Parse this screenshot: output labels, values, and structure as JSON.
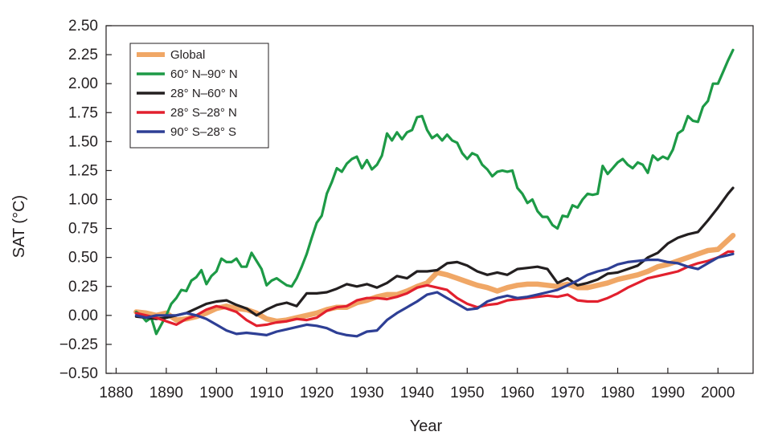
{
  "chart_data": {
    "type": "line",
    "title": "",
    "xlabel": "Year",
    "ylabel": "SAT (°C)",
    "xlim": [
      1878,
      2007
    ],
    "ylim": [
      -0.5,
      2.5
    ],
    "x_ticks": [
      1880,
      1890,
      1900,
      1910,
      1920,
      1930,
      1940,
      1950,
      1960,
      1970,
      1980,
      1990,
      2000
    ],
    "y_ticks": [
      -0.5,
      -0.25,
      0.0,
      0.25,
      0.5,
      0.75,
      1.0,
      1.25,
      1.5,
      1.75,
      2.0,
      2.25,
      2.5
    ],
    "y_tick_labels": [
      "−0.50",
      "−0.25",
      "0.00",
      "0.25",
      "0.50",
      "0.75",
      "1.00",
      "1.25",
      "1.50",
      "1.75",
      "2.00",
      "2.25",
      "2.50"
    ],
    "grid": false,
    "legend_position": "top-left",
    "series": [
      {
        "name": "Global",
        "color": "#f0a766",
        "x": [
          1884,
          1886,
          1888,
          1890,
          1892,
          1894,
          1896,
          1898,
          1900,
          1902,
          1904,
          1906,
          1908,
          1910,
          1912,
          1914,
          1916,
          1918,
          1920,
          1922,
          1924,
          1926,
          1928,
          1930,
          1932,
          1934,
          1936,
          1938,
          1940,
          1942,
          1944,
          1946,
          1948,
          1950,
          1952,
          1954,
          1956,
          1958,
          1960,
          1962,
          1964,
          1966,
          1968,
          1970,
          1972,
          1974,
          1976,
          1978,
          1980,
          1982,
          1984,
          1986,
          1988,
          1990,
          1992,
          1994,
          1996,
          1998,
          2000,
          2002,
          2003
        ],
        "y": [
          0.03,
          0.02,
          0.0,
          0.02,
          -0.04,
          -0.03,
          -0.01,
          0.02,
          0.06,
          0.08,
          0.06,
          0.05,
          0.02,
          -0.03,
          -0.05,
          -0.04,
          -0.02,
          0.0,
          0.02,
          0.05,
          0.07,
          0.07,
          0.11,
          0.13,
          0.16,
          0.18,
          0.18,
          0.21,
          0.25,
          0.28,
          0.37,
          0.35,
          0.32,
          0.29,
          0.26,
          0.24,
          0.21,
          0.24,
          0.26,
          0.27,
          0.27,
          0.26,
          0.25,
          0.27,
          0.24,
          0.24,
          0.26,
          0.28,
          0.31,
          0.33,
          0.35,
          0.38,
          0.42,
          0.44,
          0.47,
          0.5,
          0.53,
          0.56,
          0.57,
          0.65,
          0.69
        ]
      },
      {
        "name": "60° N–90° N",
        "color": "#1d9a46",
        "x": [
          1884,
          1885,
          1886,
          1887,
          1888,
          1889,
          1890,
          1891,
          1892,
          1893,
          1894,
          1895,
          1896,
          1897,
          1898,
          1899,
          1900,
          1901,
          1902,
          1903,
          1904,
          1905,
          1906,
          1907,
          1908,
          1909,
          1910,
          1911,
          1912,
          1913,
          1914,
          1915,
          1916,
          1917,
          1918,
          1919,
          1920,
          1921,
          1922,
          1923,
          1924,
          1925,
          1926,
          1927,
          1928,
          1929,
          1930,
          1931,
          1932,
          1933,
          1934,
          1935,
          1936,
          1937,
          1938,
          1939,
          1940,
          1941,
          1942,
          1943,
          1944,
          1945,
          1946,
          1947,
          1948,
          1949,
          1950,
          1951,
          1952,
          1953,
          1954,
          1955,
          1956,
          1957,
          1958,
          1959,
          1960,
          1961,
          1962,
          1963,
          1964,
          1965,
          1966,
          1967,
          1968,
          1969,
          1970,
          1971,
          1972,
          1973,
          1974,
          1975,
          1976,
          1977,
          1978,
          1979,
          1980,
          1981,
          1982,
          1983,
          1984,
          1985,
          1986,
          1987,
          1988,
          1989,
          1990,
          1991,
          1992,
          1993,
          1994,
          1995,
          1996,
          1997,
          1998,
          1999,
          2000,
          2001,
          2002,
          2003
        ],
        "y": [
          0.03,
          0.0,
          -0.05,
          -0.02,
          -0.16,
          -0.08,
          0.0,
          0.1,
          0.15,
          0.22,
          0.21,
          0.3,
          0.33,
          0.39,
          0.27,
          0.34,
          0.38,
          0.49,
          0.46,
          0.46,
          0.49,
          0.42,
          0.42,
          0.54,
          0.47,
          0.4,
          0.26,
          0.3,
          0.32,
          0.29,
          0.26,
          0.25,
          0.32,
          0.42,
          0.53,
          0.67,
          0.8,
          0.86,
          1.05,
          1.15,
          1.27,
          1.24,
          1.31,
          1.35,
          1.37,
          1.27,
          1.34,
          1.26,
          1.3,
          1.38,
          1.57,
          1.51,
          1.58,
          1.52,
          1.58,
          1.6,
          1.71,
          1.72,
          1.6,
          1.53,
          1.56,
          1.51,
          1.56,
          1.51,
          1.49,
          1.4,
          1.35,
          1.4,
          1.38,
          1.3,
          1.26,
          1.2,
          1.24,
          1.25,
          1.24,
          1.25,
          1.1,
          1.05,
          0.97,
          1.0,
          0.9,
          0.85,
          0.85,
          0.78,
          0.75,
          0.86,
          0.85,
          0.95,
          0.93,
          1.0,
          1.05,
          1.04,
          1.05,
          1.29,
          1.22,
          1.27,
          1.32,
          1.35,
          1.3,
          1.27,
          1.32,
          1.3,
          1.23,
          1.38,
          1.34,
          1.37,
          1.35,
          1.43,
          1.57,
          1.6,
          1.72,
          1.68,
          1.67,
          1.8,
          1.85,
          2.0,
          2.0,
          2.1,
          2.2,
          2.29
        ]
      },
      {
        "name": "28° N–60° N",
        "color": "#231f20",
        "x": [
          1884,
          1886,
          1888,
          1890,
          1892,
          1894,
          1896,
          1898,
          1900,
          1902,
          1904,
          1906,
          1908,
          1910,
          1912,
          1914,
          1916,
          1918,
          1920,
          1922,
          1924,
          1926,
          1928,
          1930,
          1932,
          1934,
          1936,
          1938,
          1940,
          1942,
          1944,
          1946,
          1948,
          1950,
          1952,
          1954,
          1956,
          1958,
          1960,
          1962,
          1964,
          1966,
          1968,
          1970,
          1972,
          1974,
          1976,
          1978,
          1980,
          1982,
          1984,
          1986,
          1988,
          1990,
          1992,
          1994,
          1996,
          1998,
          2000,
          2002,
          2003
        ],
        "y": [
          -0.01,
          -0.02,
          -0.03,
          -0.02,
          0.0,
          0.02,
          0.06,
          0.1,
          0.12,
          0.13,
          0.09,
          0.06,
          0.0,
          0.05,
          0.09,
          0.11,
          0.08,
          0.19,
          0.19,
          0.2,
          0.23,
          0.27,
          0.25,
          0.27,
          0.24,
          0.28,
          0.34,
          0.32,
          0.38,
          0.38,
          0.39,
          0.45,
          0.46,
          0.43,
          0.38,
          0.35,
          0.37,
          0.35,
          0.4,
          0.41,
          0.42,
          0.4,
          0.28,
          0.32,
          0.26,
          0.28,
          0.31,
          0.36,
          0.37,
          0.4,
          0.43,
          0.5,
          0.54,
          0.62,
          0.67,
          0.7,
          0.72,
          0.82,
          0.93,
          1.05,
          1.1
        ]
      },
      {
        "name": "28° S–28° N",
        "color": "#e2202e",
        "x": [
          1884,
          1886,
          1888,
          1890,
          1892,
          1894,
          1896,
          1898,
          1900,
          1902,
          1904,
          1906,
          1908,
          1910,
          1912,
          1914,
          1916,
          1918,
          1920,
          1922,
          1924,
          1926,
          1928,
          1930,
          1932,
          1934,
          1936,
          1938,
          1940,
          1942,
          1944,
          1946,
          1948,
          1950,
          1952,
          1954,
          1956,
          1958,
          1960,
          1962,
          1964,
          1966,
          1968,
          1970,
          1972,
          1974,
          1976,
          1978,
          1980,
          1982,
          1984,
          1986,
          1988,
          1990,
          1992,
          1994,
          1996,
          1998,
          2000,
          2002,
          2003
        ],
        "y": [
          0.02,
          0.0,
          -0.02,
          -0.05,
          -0.08,
          -0.03,
          0.0,
          0.05,
          0.08,
          0.06,
          0.03,
          -0.04,
          -0.09,
          -0.08,
          -0.06,
          -0.05,
          -0.03,
          -0.04,
          -0.02,
          0.04,
          0.07,
          0.08,
          0.13,
          0.15,
          0.15,
          0.14,
          0.16,
          0.19,
          0.24,
          0.26,
          0.24,
          0.22,
          0.15,
          0.1,
          0.07,
          0.09,
          0.1,
          0.13,
          0.14,
          0.15,
          0.16,
          0.17,
          0.16,
          0.18,
          0.13,
          0.12,
          0.12,
          0.15,
          0.19,
          0.24,
          0.28,
          0.32,
          0.34,
          0.36,
          0.38,
          0.42,
          0.45,
          0.47,
          0.5,
          0.55,
          0.55
        ]
      },
      {
        "name": "90° S–28° S",
        "color": "#2e3f95",
        "x": [
          1884,
          1886,
          1888,
          1890,
          1892,
          1894,
          1896,
          1898,
          1900,
          1902,
          1904,
          1906,
          1908,
          1910,
          1912,
          1914,
          1916,
          1918,
          1920,
          1922,
          1924,
          1926,
          1928,
          1930,
          1932,
          1934,
          1936,
          1938,
          1940,
          1942,
          1944,
          1946,
          1948,
          1950,
          1952,
          1954,
          1956,
          1958,
          1960,
          1962,
          1964,
          1966,
          1968,
          1970,
          1972,
          1974,
          1976,
          1978,
          1980,
          1982,
          1984,
          1986,
          1988,
          1990,
          1992,
          1994,
          1996,
          1998,
          2000,
          2002,
          2003
        ],
        "y": [
          0.0,
          -0.02,
          0.0,
          0.0,
          0.0,
          0.02,
          0.0,
          -0.03,
          -0.08,
          -0.13,
          -0.16,
          -0.15,
          -0.16,
          -0.17,
          -0.14,
          -0.12,
          -0.1,
          -0.08,
          -0.09,
          -0.11,
          -0.15,
          -0.17,
          -0.18,
          -0.14,
          -0.13,
          -0.04,
          0.02,
          0.07,
          0.12,
          0.18,
          0.2,
          0.15,
          0.1,
          0.05,
          0.06,
          0.12,
          0.15,
          0.17,
          0.15,
          0.16,
          0.18,
          0.2,
          0.22,
          0.26,
          0.3,
          0.35,
          0.38,
          0.4,
          0.44,
          0.46,
          0.47,
          0.48,
          0.48,
          0.46,
          0.45,
          0.42,
          0.4,
          0.45,
          0.5,
          0.52,
          0.53
        ]
      }
    ]
  }
}
